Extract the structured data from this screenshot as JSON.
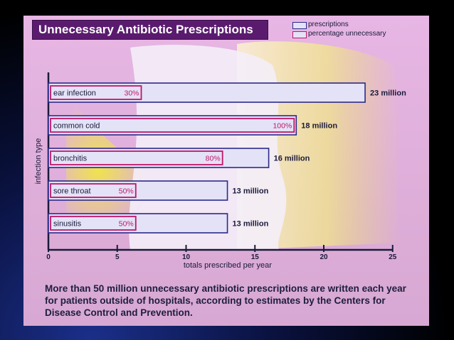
{
  "title": "Unnecessary Antibiotic Prescriptions",
  "legend": {
    "prescriptions": "prescriptions",
    "percentage": "percentage unnecessary"
  },
  "caption": "More than 50 million unnecessary antibiotic prescriptions are written each year for patients outside of hospitals, according to estimates by the Centers for Disease Control and Prevention.",
  "colors": {
    "prescriptions_outline": "#2a2a8a",
    "percentage_outline": "#c0166a",
    "bar_fill": "#e4e2f6",
    "percent_text": "#c0166a"
  },
  "chart_data": {
    "type": "bar",
    "orientation": "horizontal",
    "title": "Unnecessary Antibiotic Prescriptions",
    "xlabel": "totals prescribed per year",
    "ylabel": "infection type",
    "xlim": [
      0,
      25
    ],
    "xticks": [
      0,
      5,
      10,
      15,
      20,
      25
    ],
    "categories": [
      "ear infection",
      "common cold",
      "bronchitis",
      "sore throat",
      "sinusitis"
    ],
    "series": [
      {
        "name": "prescriptions",
        "values": [
          23,
          18,
          16,
          13,
          13
        ],
        "labels": [
          "23 million",
          "18 million",
          "16 million",
          "13 million",
          "13 million"
        ]
      },
      {
        "name": "percentage unnecessary",
        "values": [
          30,
          100,
          80,
          50,
          50
        ],
        "labels": [
          "30%",
          "100%",
          "80%",
          "50%",
          "50%"
        ]
      }
    ],
    "legend_position": "top-right"
  }
}
